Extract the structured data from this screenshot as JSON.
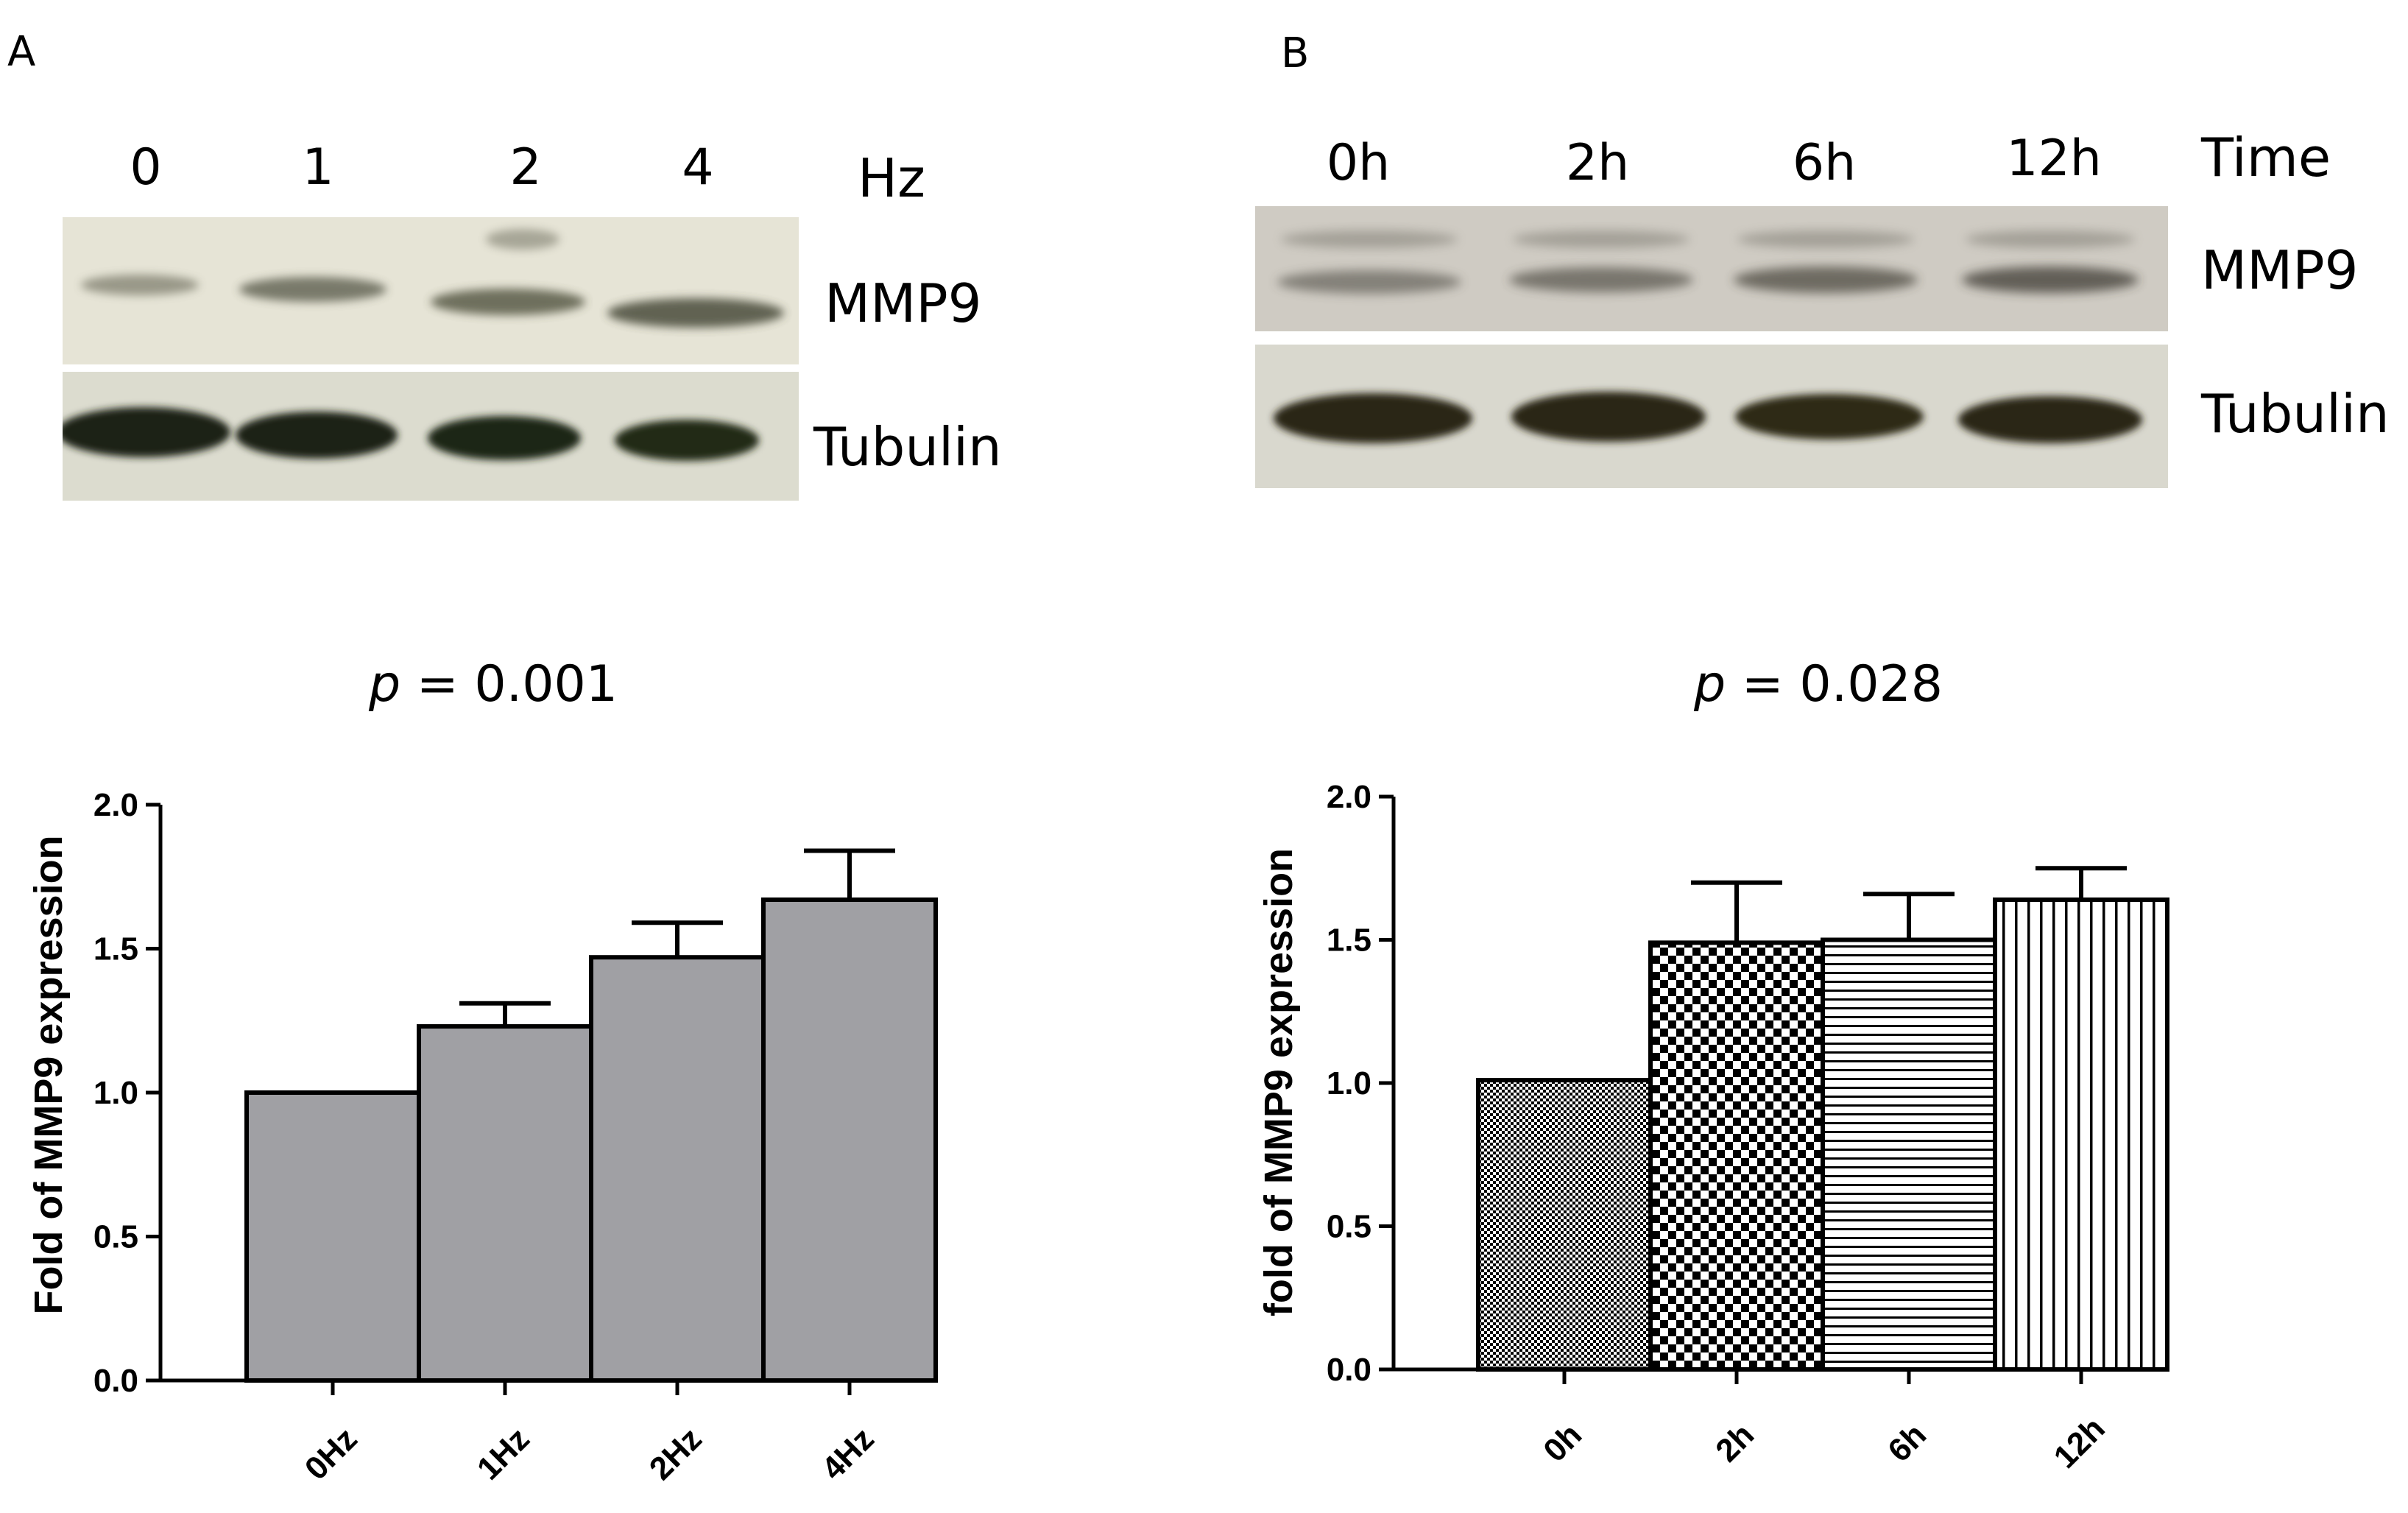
{
  "panels": {
    "a": {
      "letter": "A",
      "lanes": [
        "0",
        "1",
        "2",
        "4"
      ],
      "lane_unit": "Hz",
      "protein1": "MMP9",
      "protein2": "Tubulin",
      "pvalue_prefix": "p",
      "pvalue_rest": " = 0.001"
    },
    "b": {
      "letter": "B",
      "lanes": [
        "0h",
        "2h",
        "6h",
        "12h"
      ],
      "lane_unit": "Time",
      "protein1": "MMP9",
      "protein2": "Tubulin",
      "pvalue_prefix": "p",
      "pvalue_rest": " = 0.028"
    }
  },
  "chart_data": [
    {
      "type": "bar",
      "categories": [
        "0Hz",
        "1Hz",
        "2Hz",
        "4Hz"
      ],
      "values": [
        1.0,
        1.23,
        1.47,
        1.67
      ],
      "errors": [
        0,
        0.08,
        0.12,
        0.17
      ],
      "ylabel": "Fold of MMP9 expression",
      "ylim": [
        0,
        2.0
      ],
      "yticks": [
        "0.0",
        "0.5",
        "1.0",
        "1.5",
        "2.0"
      ],
      "bar_color": "#a0a0a4",
      "grid": false
    },
    {
      "type": "bar",
      "categories": [
        "0h",
        "2h",
        "6h",
        "12h"
      ],
      "values": [
        1.01,
        1.49,
        1.5,
        1.64
      ],
      "errors": [
        0,
        0.21,
        0.16,
        0.11
      ],
      "patterns": [
        "fine-dots",
        "checker",
        "horizontal-lines",
        "vertical-lines"
      ],
      "ylabel": "fold of MMP9 expression",
      "ylim": [
        0,
        2.0
      ],
      "yticks": [
        "0.0",
        "0.5",
        "1.0",
        "1.5",
        "2.0"
      ],
      "grid": false
    }
  ]
}
